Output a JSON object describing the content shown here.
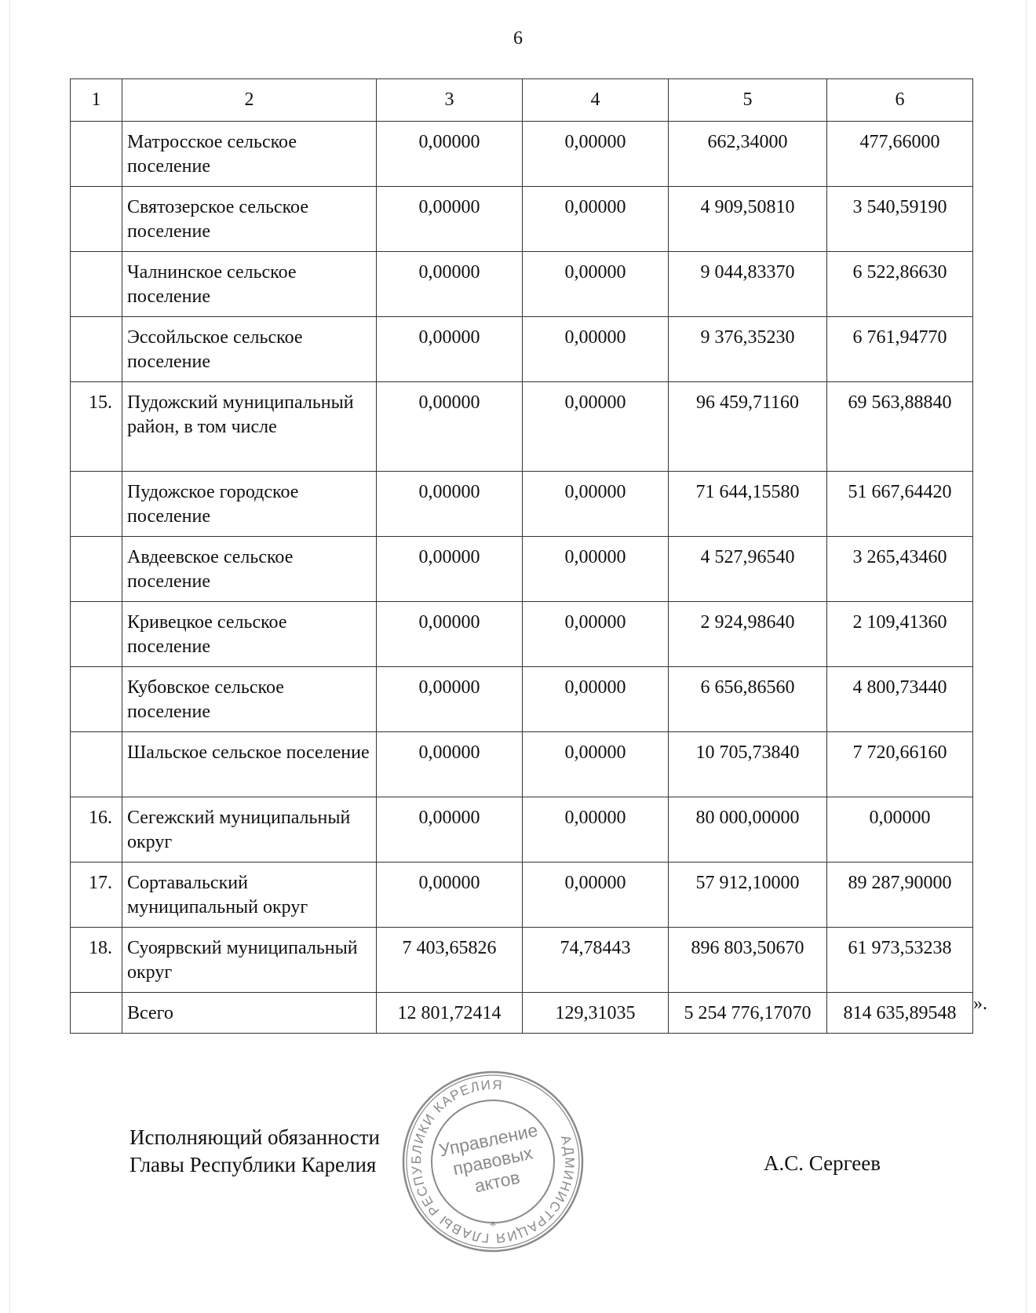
{
  "page_number": "6",
  "table": {
    "header": [
      "1",
      "2",
      "3",
      "4",
      "5",
      "6"
    ],
    "rows": [
      {
        "num": "",
        "name": "Матросское сельское поселение",
        "c3": "0,00000",
        "c4": "0,00000",
        "c5": "662,34000",
        "c6": "477,66000"
      },
      {
        "num": "",
        "name": "Святозерское сельское поселение",
        "c3": "0,00000",
        "c4": "0,00000",
        "c5": "4 909,50810",
        "c6": "3 540,59190"
      },
      {
        "num": "",
        "name": "Чалнинское сельское поселение",
        "c3": "0,00000",
        "c4": "0,00000",
        "c5": "9 044,83370",
        "c6": "6 522,86630"
      },
      {
        "num": "",
        "name": "Эссойльское сельское поселение",
        "c3": "0,00000",
        "c4": "0,00000",
        "c5": "9 376,35230",
        "c6": "6 761,94770"
      },
      {
        "num": "15.",
        "name": "Пудожский муниципальный район, в том числе",
        "c3": "0,00000",
        "c4": "0,00000",
        "c5": "96 459,71160",
        "c6": "69 563,88840"
      },
      {
        "num": "",
        "name": "Пудожское городское поселение",
        "c3": "0,00000",
        "c4": "0,00000",
        "c5": "71 644,15580",
        "c6": "51 667,64420"
      },
      {
        "num": "",
        "name": "Авдеевское сельское поселение",
        "c3": "0,00000",
        "c4": "0,00000",
        "c5": "4 527,96540",
        "c6": "3 265,43460"
      },
      {
        "num": "",
        "name": "Кривецкое сельское поселение",
        "c3": "0,00000",
        "c4": "0,00000",
        "c5": "2 924,98640",
        "c6": "2 109,41360"
      },
      {
        "num": "",
        "name": "Кубовское сельское поселение",
        "c3": "0,00000",
        "c4": "0,00000",
        "c5": "6 656,86560",
        "c6": "4 800,73440"
      },
      {
        "num": "",
        "name": "Шальское сельское поселение",
        "c3": "0,00000",
        "c4": "0,00000",
        "c5": "10 705,73840",
        "c6": "7 720,66160"
      },
      {
        "num": "16.",
        "name": "Сегежский муниципальный округ",
        "c3": "0,00000",
        "c4": "0,00000",
        "c5": "80 000,00000",
        "c6": "0,00000"
      },
      {
        "num": "17.",
        "name": "Сортавальский муниципальный округ",
        "c3": "0,00000",
        "c4": "0,00000",
        "c5": "57 912,10000",
        "c6": "89 287,90000"
      },
      {
        "num": "18.",
        "name": "Суоярвский муниципальный округ",
        "c3": "7 403,65826",
        "c4": "74,78443",
        "c5": "896 803,50670",
        "c6": "61 973,53238"
      }
    ],
    "total": {
      "num": "",
      "name": "Всего",
      "c3": "12 801,72414",
      "c4": "129,31035",
      "c5": "5 254 776,17070",
      "c6": "814 635,89548"
    },
    "closing_quote": "»."
  },
  "signature": {
    "line1": "Исполняющий обязанности",
    "line2": "Главы Республики Карелия",
    "name": "А.С. Сергеев"
  },
  "stamp": {
    "ring_text": "АДМИНИСТРАЦИЯ ГЛАВЫ РЕСПУБЛИКИ КАРЕЛИЯ",
    "center_line1": "Управление",
    "center_line2": "правовых",
    "center_line3": "актов",
    "color": "#8a8a8a"
  }
}
